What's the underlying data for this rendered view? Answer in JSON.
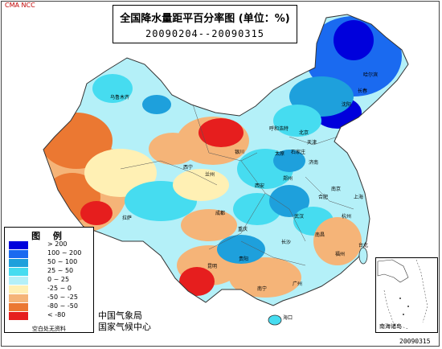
{
  "agency_top": "CMA NCC",
  "title": "全国降水量距平百分率图 (单位：%)",
  "period": "20090204--20090315",
  "legend": {
    "title": "图 例",
    "items": [
      {
        "label": "> 200",
        "color": "#0000dc"
      },
      {
        "label": "100 ~ 200",
        "color": "#1a6af0"
      },
      {
        "label": "50 ~ 100",
        "color": "#1ea0dc"
      },
      {
        "label": "25 ~ 50",
        "color": "#46dcf0"
      },
      {
        "label": "0 ~ 25",
        "color": "#b4f0f8"
      },
      {
        "label": "-25 ~ 0",
        "color": "#fff0b4"
      },
      {
        "label": "-50 ~ -25",
        "color": "#f5b478"
      },
      {
        "label": "-80 ~ -50",
        "color": "#eb7832"
      },
      {
        "label": "< -80",
        "color": "#e61e1e"
      }
    ],
    "note": "空白处无资料"
  },
  "agency_bottom": [
    "中国气象局",
    "国家气候中心"
  ],
  "date_stamp": "20090315",
  "inset_label": "南海诸岛",
  "cities": [
    {
      "name": "乌鲁木齐"
    },
    {
      "name": "西宁"
    },
    {
      "name": "兰州"
    },
    {
      "name": "拉萨"
    },
    {
      "name": "银川"
    },
    {
      "name": "呼和浩特"
    },
    {
      "name": "北京"
    },
    {
      "name": "天津"
    },
    {
      "name": "太原"
    },
    {
      "name": "石家庄"
    },
    {
      "name": "济南"
    },
    {
      "name": "郑州"
    },
    {
      "name": "西安"
    },
    {
      "name": "成都"
    },
    {
      "name": "重庆"
    },
    {
      "name": "武汉"
    },
    {
      "name": "合肥"
    },
    {
      "name": "南京"
    },
    {
      "name": "上海"
    },
    {
      "name": "杭州"
    },
    {
      "name": "长沙"
    },
    {
      "name": "南昌"
    },
    {
      "name": "贵阳"
    },
    {
      "name": "昆明"
    },
    {
      "name": "南宁"
    },
    {
      "name": "广州"
    },
    {
      "name": "福州"
    },
    {
      "name": "台北"
    },
    {
      "name": "海口"
    },
    {
      "name": "沈阳"
    },
    {
      "name": "长春"
    },
    {
      "name": "哈尔滨"
    }
  ]
}
